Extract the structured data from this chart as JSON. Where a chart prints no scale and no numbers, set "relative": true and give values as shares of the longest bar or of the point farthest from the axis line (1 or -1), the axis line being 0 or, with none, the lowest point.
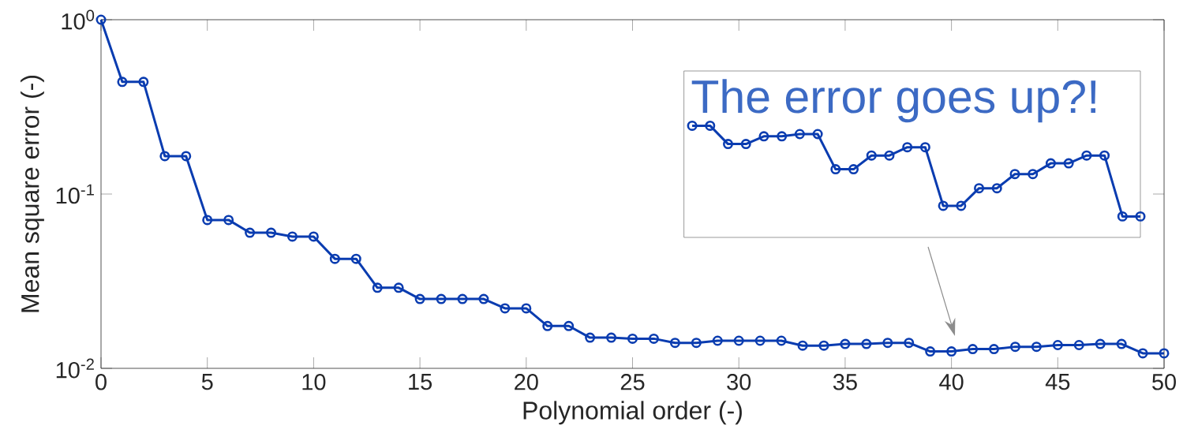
{
  "chart_data": [
    {
      "type": "line",
      "xlabel": "Polynomial order (-)",
      "ylabel": "Mean square error (-)",
      "log": "y",
      "marker": "circle",
      "line_style": "solid",
      "x": [
        0,
        1,
        2,
        3,
        4,
        5,
        6,
        7,
        8,
        9,
        10,
        11,
        12,
        13,
        14,
        15,
        16,
        17,
        18,
        19,
        20,
        21,
        22,
        23,
        24,
        25,
        26,
        27,
        28,
        29,
        30,
        31,
        32,
        33,
        34,
        35,
        36,
        37,
        38,
        39,
        40,
        41,
        42,
        43,
        44,
        45,
        46,
        47,
        48,
        49,
        50
      ],
      "series": [
        {
          "color": "#0a3cb0",
          "values": [
            1.0,
            0.44,
            0.44,
            0.165,
            0.165,
            0.071,
            0.071,
            0.06,
            0.06,
            0.057,
            0.057,
            0.0425,
            0.0425,
            0.029,
            0.029,
            0.025,
            0.025,
            0.025,
            0.025,
            0.0221,
            0.0221,
            0.0175,
            0.0175,
            0.015,
            0.015,
            0.0148,
            0.0148,
            0.014,
            0.014,
            0.0144,
            0.0144,
            0.0144,
            0.0144,
            0.0135,
            0.0135,
            0.0138,
            0.0138,
            0.014,
            0.014,
            0.0125,
            0.0125,
            0.0129,
            0.0129,
            0.0133,
            0.0133,
            0.0136,
            0.0136,
            0.0138,
            0.0138,
            0.0122,
            0.0122
          ]
        }
      ],
      "xlim": [
        0,
        50
      ],
      "ylim": [
        0.01,
        1
      ],
      "xticks": [
        0,
        5,
        10,
        15,
        20,
        25,
        30,
        35,
        40,
        45,
        50
      ],
      "yticks": [
        {
          "value": 0.01,
          "label": "10$^{-2}$"
        },
        {
          "value": 0.1,
          "label": "10$^{-1}$"
        },
        {
          "value": 1,
          "label": "10$^{0}$"
        }
      ]
    },
    {
      "type": "line",
      "title": "The error goes up?!",
      "relative": true,
      "marker": "circle",
      "line_style": "solid",
      "categories": [
        null,
        null,
        null,
        null,
        null,
        null,
        null,
        null,
        null,
        null,
        null,
        null,
        null,
        null,
        null,
        null,
        null,
        null,
        null,
        null,
        null,
        null,
        null,
        null,
        null,
        null
      ],
      "series": [
        {
          "color": "#0a3cb0",
          "values": [
            1,
            1,
            0.836,
            0.836,
            0.905,
            0.905,
            0.925,
            0.925,
            0.61,
            0.61,
            0.733,
            0.733,
            0.807,
            0.807,
            0.283,
            0.283,
            0.44,
            0.44,
            0.567,
            0.567,
            0.663,
            0.663,
            0.733,
            0.733,
            0.188,
            0.188
          ]
        }
      ]
    }
  ]
}
